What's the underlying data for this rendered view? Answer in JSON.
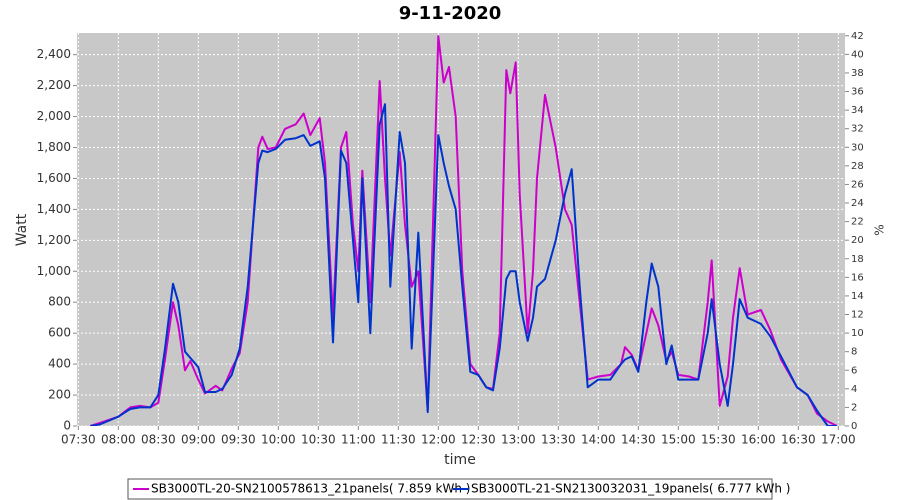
{
  "chart_data": {
    "type": "line",
    "title": "9-11-2020",
    "xlabel": "time",
    "ylabel": "Watt",
    "y2label": "%",
    "x": [
      "07:39",
      "07:46",
      "08:00",
      "08:09",
      "08:16",
      "08:24",
      "08:30",
      "08:35",
      "08:41",
      "08:45",
      "08:50",
      "08:54",
      "09:00",
      "09:05",
      "09:13",
      "09:18",
      "09:25",
      "09:31",
      "09:37",
      "09:45",
      "09:48",
      "09:52",
      "09:58",
      "10:05",
      "10:13",
      "10:19",
      "10:24",
      "10:31",
      "10:35",
      "10:41",
      "10:47",
      "10:51",
      "10:56",
      "11:00",
      "11:03",
      "11:09",
      "11:16",
      "11:20",
      "11:24",
      "11:31",
      "11:35",
      "11:40",
      "11:45",
      "11:52",
      "12:00",
      "12:04",
      "12:08",
      "12:13",
      "12:18",
      "12:24",
      "12:30",
      "12:36",
      "12:41",
      "12:46",
      "12:51",
      "12:54",
      "12:58",
      "13:01",
      "13:07",
      "13:11",
      "13:14",
      "13:20",
      "13:28",
      "13:35",
      "13:40",
      "13:46",
      "13:52",
      "14:00",
      "14:09",
      "14:17",
      "14:20",
      "14:25",
      "14:30",
      "14:36",
      "14:40",
      "14:45",
      "14:51",
      "14:55",
      "15:00",
      "15:08",
      "15:15",
      "15:22",
      "15:25",
      "15:31",
      "15:37",
      "15:41",
      "15:46",
      "15:52",
      "16:02",
      "16:09",
      "16:17",
      "16:29",
      "16:37",
      "16:44",
      "16:52",
      "16:59"
    ],
    "series": [
      {
        "name": "SB3000TL-20-SN2100578613_21panels( 7.859 kWh )",
        "color": "#cc00cc",
        "values": [
          0,
          20,
          60,
          120,
          130,
          120,
          150,
          430,
          800,
          650,
          360,
          420,
          300,
          210,
          260,
          230,
          370,
          470,
          800,
          1800,
          1870,
          1790,
          1800,
          1920,
          1950,
          2020,
          1880,
          1990,
          1700,
          700,
          1800,
          1900,
          1300,
          1000,
          1650,
          800,
          2230,
          1600,
          1100,
          1770,
          1300,
          900,
          1000,
          100,
          2520,
          2220,
          2320,
          2000,
          1000,
          400,
          330,
          250,
          240,
          600,
          2300,
          2150,
          2350,
          1500,
          600,
          1000,
          1600,
          2140,
          1800,
          1400,
          1300,
          800,
          300,
          320,
          330,
          400,
          510,
          460,
          360,
          600,
          760,
          650,
          420,
          480,
          330,
          320,
          300,
          800,
          1070,
          130,
          320,
          700,
          1020,
          720,
          750,
          620,
          430,
          250,
          200,
          80,
          30,
          0
        ]
      },
      {
        "name": "SB3000TL-21-SN2130032031_19panels( 6.777 kWh )",
        "color": "#0033cc",
        "values": [
          0,
          10,
          60,
          110,
          120,
          120,
          200,
          500,
          920,
          800,
          480,
          440,
          380,
          220,
          220,
          240,
          330,
          500,
          900,
          1700,
          1780,
          1770,
          1790,
          1850,
          1860,
          1880,
          1810,
          1840,
          1600,
          540,
          1780,
          1700,
          1200,
          800,
          1600,
          600,
          1950,
          2080,
          900,
          1900,
          1700,
          500,
          1250,
          90,
          1880,
          1700,
          1550,
          1400,
          900,
          350,
          330,
          250,
          230,
          500,
          950,
          1000,
          1000,
          800,
          550,
          700,
          900,
          950,
          1200,
          1500,
          1660,
          900,
          250,
          300,
          300,
          400,
          430,
          450,
          350,
          800,
          1050,
          900,
          400,
          520,
          300,
          300,
          300,
          600,
          820,
          400,
          130,
          400,
          820,
          700,
          660,
          580,
          450,
          250,
          200,
          100,
          0,
          0
        ]
      }
    ],
    "xlim": [
      "07:29",
      "17:05"
    ],
    "xticks": [
      "07:30",
      "08:00",
      "08:30",
      "09:00",
      "09:30",
      "10:00",
      "10:30",
      "11:00",
      "11:30",
      "12:00",
      "12:30",
      "13:00",
      "13:30",
      "14:00",
      "14:30",
      "15:00",
      "15:30",
      "16:00",
      "16:30",
      "17:00"
    ],
    "ylim": [
      0,
      2540
    ],
    "yticks": [
      0,
      200,
      400,
      600,
      800,
      {
        "value": 1000,
        "label": "1,000"
      },
      {
        "value": 1200,
        "label": "1,200"
      },
      {
        "value": 1400,
        "label": "1,400"
      },
      {
        "value": 1600,
        "label": "1,600"
      },
      {
        "value": 1800,
        "label": "1,800"
      },
      {
        "value": 2000,
        "label": "2,000"
      },
      {
        "value": 2200,
        "label": "2,200"
      },
      {
        "value": 2400,
        "label": "2,400"
      }
    ],
    "y2lim": [
      0,
      42.3
    ],
    "y2ticks": [
      0,
      2,
      4,
      6,
      8,
      10,
      12,
      14,
      16,
      18,
      20,
      22,
      24,
      26,
      28,
      30,
      32,
      34,
      36,
      38,
      40,
      42
    ],
    "grid": true,
    "legend": "bottom"
  }
}
